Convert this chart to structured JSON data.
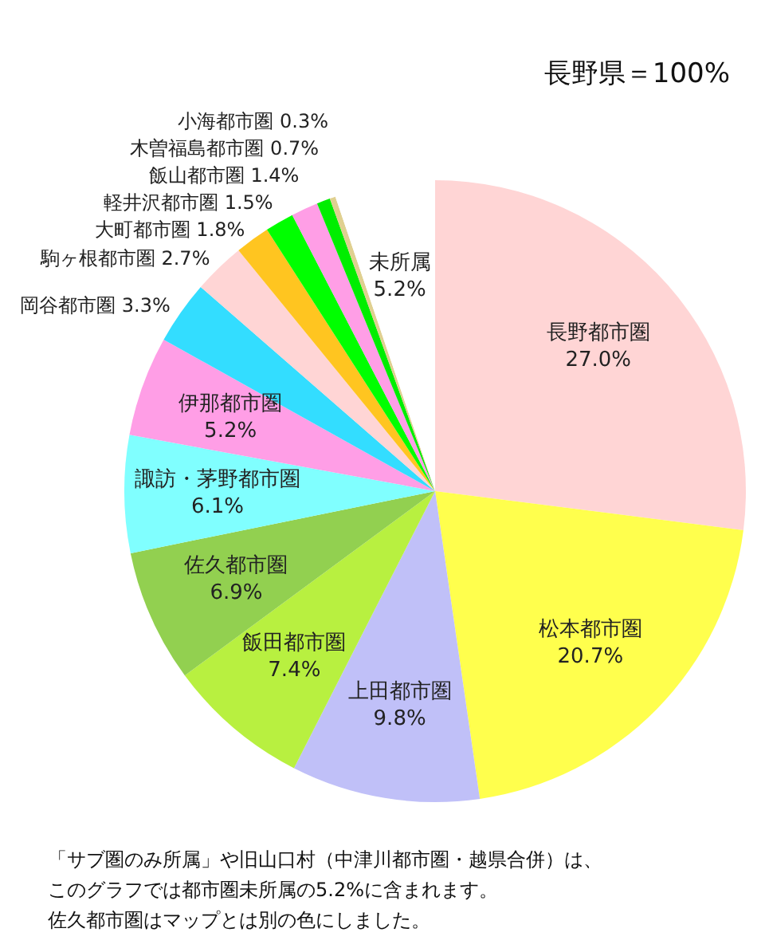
{
  "chart_data": {
    "type": "pie",
    "categories": [
      "長野都市圏",
      "松本都市圏",
      "上田都市圏",
      "飯田都市圏",
      "佐久都市圏",
      "諏訪・茅野都市圏",
      "伊那都市圏",
      "岡谷都市圏",
      "駒ヶ根都市圏",
      "大町都市圏",
      "軽井沢都市圏",
      "飯山都市圏",
      "木曽福島都市圏",
      "小海都市圏",
      "未所属"
    ],
    "values": [
      27.0,
      20.7,
      9.8,
      7.4,
      6.9,
      6.1,
      5.2,
      3.3,
      2.7,
      1.8,
      1.5,
      1.4,
      0.7,
      0.3,
      5.2
    ],
    "value_labels": [
      "27.0%",
      "20.7%",
      "9.8%",
      "7.4%",
      "6.9%",
      "6.1%",
      "5.2%",
      "3.3%",
      "2.7%",
      "1.8%",
      "1.5%",
      "1.4%",
      "0.7%",
      "0.3%",
      "5.2%"
    ],
    "colors": [
      "#ffd5d5",
      "#ffff4d",
      "#c0c0f8",
      "#b8f040",
      "#92d050",
      "#80ffff",
      "#ff9ee6",
      "#33ddff",
      "#ffd5d5",
      "#ffc520",
      "#00ff00",
      "#ff9ee6",
      "#00ee00",
      "#e0d090",
      "#ffffff"
    ],
    "annotations": [
      "長野県＝100%",
      "「サブ圏のみ所属」や旧山口村（中津川都市圏・越県合併）は、",
      "このグラフでは都市圏未所属の5.2%に含まれます。",
      "佐久都市圏はマップとは別の色にしました。"
    ],
    "legend": false
  }
}
